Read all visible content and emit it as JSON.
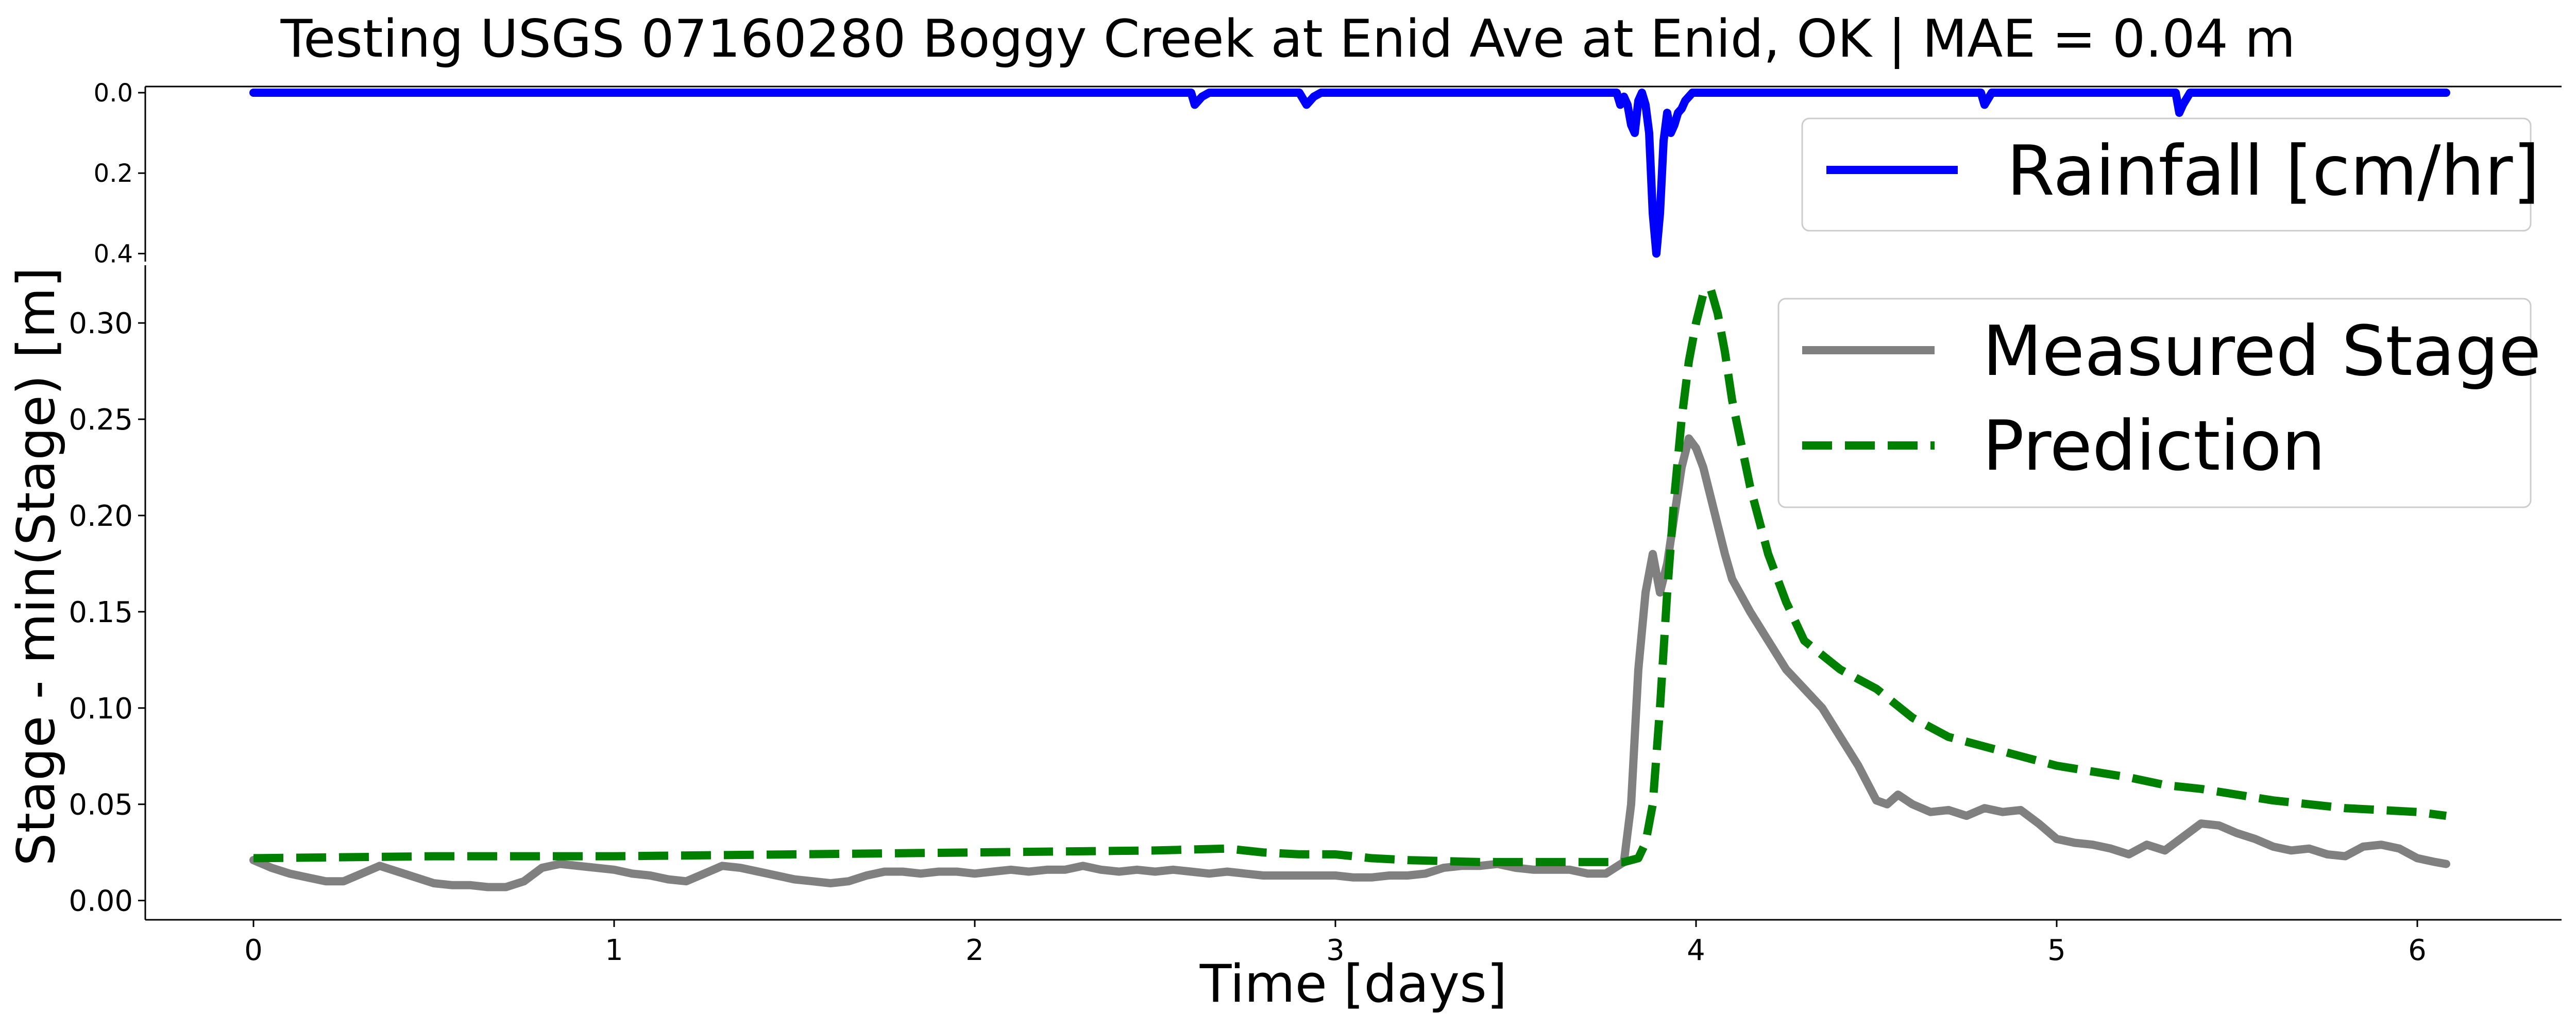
{
  "chart_data": [
    {
      "type": "line",
      "panel": "rainfall",
      "title": "Testing USGS 07160280 Boggy Creek at Enid Ave at Enid, OK | MAE = 0.04 m",
      "ylim": [
        0.42,
        0.0
      ],
      "y_inverted": true,
      "y_ticks": [
        0.0,
        0.2,
        0.4
      ],
      "y_tick_labels": [
        "0.0",
        "0.2",
        "0.4"
      ],
      "xlim": [
        -0.3,
        6.4
      ],
      "grid": false,
      "legend_position": "top-right",
      "series": [
        {
          "name": "Rainfall [cm/hr]",
          "color": "#0000ff",
          "style": "solid",
          "x": [
            0,
            2.6,
            2.61,
            2.63,
            2.65,
            2.9,
            2.92,
            2.94,
            2.96,
            3.78,
            3.79,
            3.8,
            3.81,
            3.82,
            3.83,
            3.84,
            3.85,
            3.86,
            3.87,
            3.88,
            3.89,
            3.9,
            3.91,
            3.92,
            3.93,
            3.94,
            3.95,
            3.96,
            3.97,
            3.99,
            4.79,
            4.8,
            4.82,
            5.33,
            5.34,
            5.35,
            5.37,
            6.08
          ],
          "values": [
            0,
            0,
            0.03,
            0.01,
            0,
            0,
            0.03,
            0.01,
            0,
            0,
            0.03,
            0.01,
            0.03,
            0.08,
            0.1,
            0.02,
            0.0,
            0.03,
            0.1,
            0.3,
            0.4,
            0.3,
            0.12,
            0.05,
            0.1,
            0.08,
            0.05,
            0.04,
            0.02,
            0,
            0,
            0.03,
            0,
            0,
            0.05,
            0.03,
            0,
            0
          ]
        }
      ]
    },
    {
      "type": "line",
      "panel": "stage",
      "xlabel": "Time [days]",
      "ylabel": "Stage - min(Stage) [m]",
      "xlim": [
        -0.3,
        6.4
      ],
      "ylim": [
        -0.01,
        0.33
      ],
      "x_ticks": [
        0,
        1,
        2,
        3,
        4,
        5,
        6
      ],
      "x_tick_labels": [
        "0",
        "1",
        "2",
        "3",
        "4",
        "5",
        "6"
      ],
      "y_ticks": [
        0.0,
        0.05,
        0.1,
        0.15,
        0.2,
        0.25,
        0.3
      ],
      "y_tick_labels": [
        "0.00",
        "0.05",
        "0.10",
        "0.15",
        "0.20",
        "0.25",
        "0.30"
      ],
      "grid": false,
      "legend_position": "top-right",
      "series": [
        {
          "name": "Measured Stage",
          "color": "#808080",
          "style": "solid",
          "x": [
            0,
            0.05,
            0.1,
            0.15,
            0.2,
            0.25,
            0.3,
            0.35,
            0.4,
            0.45,
            0.5,
            0.55,
            0.6,
            0.65,
            0.7,
            0.75,
            0.8,
            0.85,
            0.9,
            0.95,
            1.0,
            1.05,
            1.1,
            1.15,
            1.2,
            1.25,
            1.3,
            1.35,
            1.4,
            1.45,
            1.5,
            1.55,
            1.6,
            1.65,
            1.7,
            1.75,
            1.8,
            1.85,
            1.9,
            1.95,
            2.0,
            2.05,
            2.1,
            2.15,
            2.2,
            2.25,
            2.3,
            2.35,
            2.4,
            2.45,
            2.5,
            2.55,
            2.6,
            2.65,
            2.7,
            2.75,
            2.8,
            2.85,
            2.9,
            2.95,
            3.0,
            3.05,
            3.1,
            3.15,
            3.2,
            3.25,
            3.3,
            3.35,
            3.4,
            3.45,
            3.5,
            3.55,
            3.6,
            3.65,
            3.7,
            3.75,
            3.8,
            3.82,
            3.84,
            3.86,
            3.88,
            3.9,
            3.92,
            3.94,
            3.96,
            3.98,
            4.0,
            4.02,
            4.04,
            4.06,
            4.08,
            4.1,
            4.15,
            4.2,
            4.25,
            4.3,
            4.35,
            4.4,
            4.45,
            4.5,
            4.53,
            4.56,
            4.6,
            4.65,
            4.7,
            4.75,
            4.8,
            4.85,
            4.9,
            4.95,
            5.0,
            5.05,
            5.1,
            5.15,
            5.2,
            5.25,
            5.3,
            5.35,
            5.4,
            5.45,
            5.5,
            5.55,
            5.6,
            5.65,
            5.7,
            5.75,
            5.8,
            5.85,
            5.9,
            5.95,
            6.0,
            6.05,
            6.08
          ],
          "values": [
            0.021,
            0.017,
            0.014,
            0.012,
            0.01,
            0.01,
            0.014,
            0.018,
            0.015,
            0.012,
            0.009,
            0.008,
            0.008,
            0.007,
            0.007,
            0.01,
            0.017,
            0.019,
            0.018,
            0.017,
            0.016,
            0.014,
            0.013,
            0.011,
            0.01,
            0.014,
            0.018,
            0.017,
            0.015,
            0.013,
            0.011,
            0.01,
            0.009,
            0.01,
            0.013,
            0.015,
            0.015,
            0.014,
            0.015,
            0.015,
            0.014,
            0.015,
            0.016,
            0.015,
            0.016,
            0.016,
            0.018,
            0.016,
            0.015,
            0.016,
            0.015,
            0.016,
            0.015,
            0.014,
            0.015,
            0.014,
            0.013,
            0.013,
            0.013,
            0.013,
            0.013,
            0.012,
            0.012,
            0.013,
            0.013,
            0.014,
            0.017,
            0.018,
            0.018,
            0.019,
            0.017,
            0.016,
            0.016,
            0.016,
            0.014,
            0.014,
            0.02,
            0.05,
            0.12,
            0.16,
            0.18,
            0.16,
            0.175,
            0.2,
            0.225,
            0.24,
            0.235,
            0.225,
            0.21,
            0.195,
            0.18,
            0.167,
            0.15,
            0.135,
            0.12,
            0.11,
            0.1,
            0.085,
            0.07,
            0.052,
            0.05,
            0.055,
            0.05,
            0.046,
            0.047,
            0.044,
            0.048,
            0.046,
            0.047,
            0.04,
            0.032,
            0.03,
            0.029,
            0.027,
            0.024,
            0.029,
            0.026,
            0.033,
            0.04,
            0.039,
            0.035,
            0.032,
            0.028,
            0.026,
            0.027,
            0.024,
            0.023,
            0.028,
            0.029,
            0.027,
            0.022,
            0.02,
            0.019
          ]
        },
        {
          "name": "Prediction",
          "color": "#008000",
          "style": "dashed",
          "x": [
            0,
            0.5,
            1.0,
            1.5,
            2.0,
            2.5,
            2.7,
            2.8,
            2.9,
            3.0,
            3.1,
            3.2,
            3.4,
            3.6,
            3.8,
            3.84,
            3.86,
            3.88,
            3.9,
            3.92,
            3.94,
            3.96,
            3.98,
            4.0,
            4.02,
            4.04,
            4.06,
            4.08,
            4.1,
            4.15,
            4.2,
            4.25,
            4.3,
            4.4,
            4.5,
            4.6,
            4.7,
            4.8,
            4.9,
            5.0,
            5.1,
            5.2,
            5.3,
            5.4,
            5.5,
            5.6,
            5.7,
            5.8,
            5.9,
            6.0,
            6.08
          ],
          "values": [
            0.022,
            0.023,
            0.023,
            0.024,
            0.025,
            0.026,
            0.027,
            0.025,
            0.024,
            0.024,
            0.022,
            0.021,
            0.02,
            0.02,
            0.02,
            0.022,
            0.03,
            0.05,
            0.1,
            0.16,
            0.21,
            0.25,
            0.28,
            0.3,
            0.315,
            0.318,
            0.305,
            0.285,
            0.26,
            0.215,
            0.18,
            0.155,
            0.135,
            0.12,
            0.11,
            0.095,
            0.085,
            0.08,
            0.075,
            0.07,
            0.067,
            0.064,
            0.06,
            0.058,
            0.055,
            0.052,
            0.05,
            0.048,
            0.047,
            0.046,
            0.044
          ]
        }
      ]
    }
  ]
}
